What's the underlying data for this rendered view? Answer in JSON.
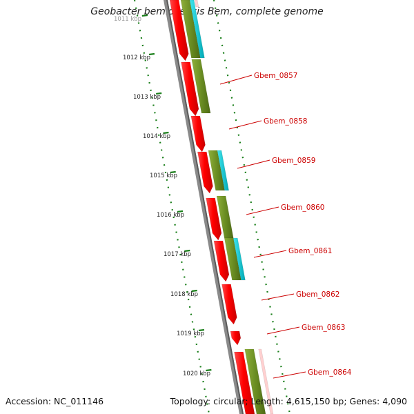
{
  "title": "Geobacter bemidjiensis Bem, complete genome",
  "accession": "Accession: NC_011146",
  "summary": "Topology: circular; Length: 4,615,150 bp; Genes: 4,090",
  "ruler": {
    "labels": [
      "1011 kbp",
      "1012 kbp",
      "1013 kbp",
      "1014 kbp",
      "1015 kbp",
      "1016 kbp",
      "1017 kbp",
      "1018 kbp",
      "1019 kbp",
      "1020 kbp"
    ],
    "tick_color": "#1a7f1a"
  },
  "genes": [
    "Gbem_0857",
    "Gbem_0858",
    "Gbem_0859",
    "Gbem_0860",
    "Gbem_0861",
    "Gbem_0862",
    "Gbem_0863",
    "Gbem_0864"
  ],
  "colors": {
    "cds": "#ff0000",
    "feature_olive": "#6b8e23",
    "feature_cyan": "#00c8d2",
    "label": "#cc0000",
    "backbone": "#777777"
  }
}
